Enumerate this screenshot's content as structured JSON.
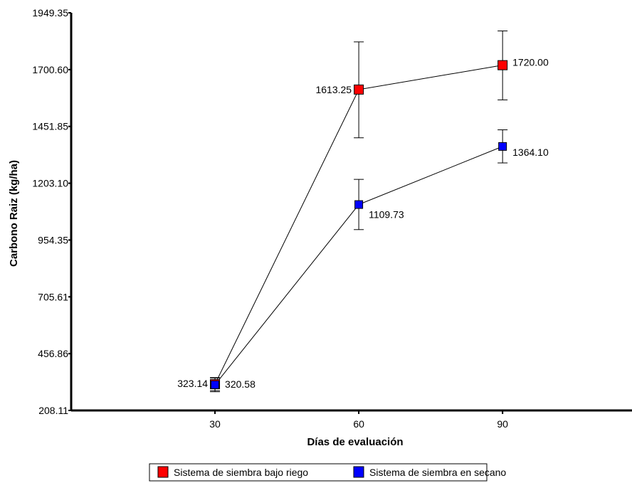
{
  "chart_data": {
    "type": "line",
    "xlabel": "Días de evaluación",
    "ylabel": "Carbono Raiz (kg/ha)",
    "x": [
      30,
      60,
      90
    ],
    "x_ticks": [
      "30",
      "60",
      "90"
    ],
    "xlim": [
      0,
      117
    ],
    "ylim": [
      208.11,
      1949.35
    ],
    "y_ticks": [
      "208.11",
      "456.86",
      "705.61",
      "954.35",
      "1203.10",
      "1451.85",
      "1700.60",
      "1949.35"
    ],
    "y_tick_values": [
      208.11,
      456.86,
      705.61,
      954.35,
      1203.1,
      1451.85,
      1700.6,
      1949.35
    ],
    "grid": false,
    "legend_position": "bottom",
    "series": [
      {
        "name": "Sistema de siembra bajo riego",
        "color": "#ff0000",
        "marker": "square",
        "values": [
          323.14,
          1613.25,
          1720.0
        ],
        "labels": [
          "323.14",
          "1613.25",
          "1720.00"
        ],
        "label_side": [
          "left",
          "left",
          "right"
        ],
        "error_low": [
          295,
          1402,
          1568
        ],
        "error_high": [
          350,
          1822,
          1870
        ]
      },
      {
        "name": "Sistema de siembra en secano",
        "color": "#0000ff",
        "marker": "square",
        "values": [
          320.58,
          1109.73,
          1364.1
        ],
        "labels": [
          "320.58",
          "1109.73",
          "1364.10"
        ],
        "label_side": [
          "right",
          "right",
          "right"
        ],
        "error_low": [
          290,
          1000,
          1292
        ],
        "error_high": [
          352,
          1220,
          1437
        ]
      }
    ]
  }
}
